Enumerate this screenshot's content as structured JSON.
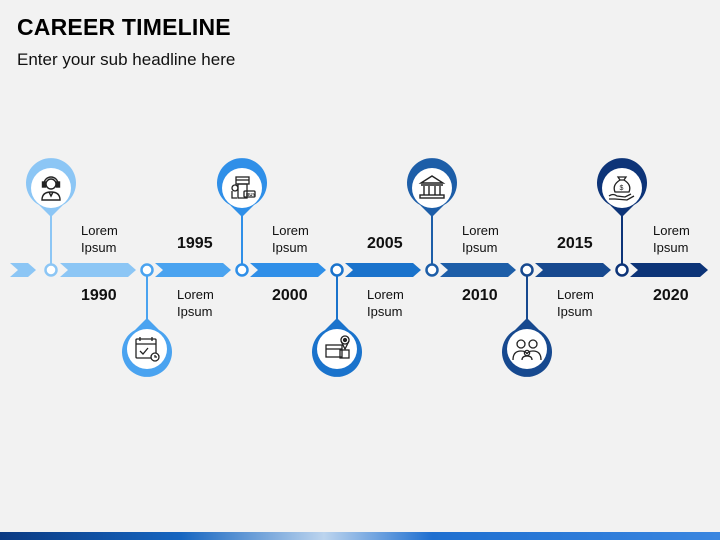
{
  "title": "CAREER TIMELINE",
  "subtitle": "Enter your sub headline here",
  "milestones": [
    {
      "year": "1990",
      "label1": "Lorem",
      "label2": "Ipsum",
      "icon": "person-headset-icon",
      "color": "#8cc6f5"
    },
    {
      "year": "1995",
      "label1": "Lorem",
      "label2": "Ipsum",
      "icon": "calendar-icon",
      "color": "#4aa3f0"
    },
    {
      "year": "2000",
      "label1": "Lorem",
      "label2": "Ipsum",
      "icon": "shop-buy-icon",
      "color": "#2f8fe8"
    },
    {
      "year": "2005",
      "label1": "Lorem",
      "label2": "Ipsum",
      "icon": "box-location-icon",
      "color": "#1a73cc"
    },
    {
      "year": "2010",
      "label1": "Lorem",
      "label2": "Ipsum",
      "icon": "bank-icon",
      "color": "#1d5ea8"
    },
    {
      "year": "2015",
      "label1": "Lorem",
      "label2": "Ipsum",
      "icon": "family-icon",
      "color": "#17498f"
    },
    {
      "year": "2020",
      "label1": "Lorem",
      "label2": "Ipsum",
      "icon": "money-bag-hand-icon",
      "color": "#0d3478"
    }
  ]
}
